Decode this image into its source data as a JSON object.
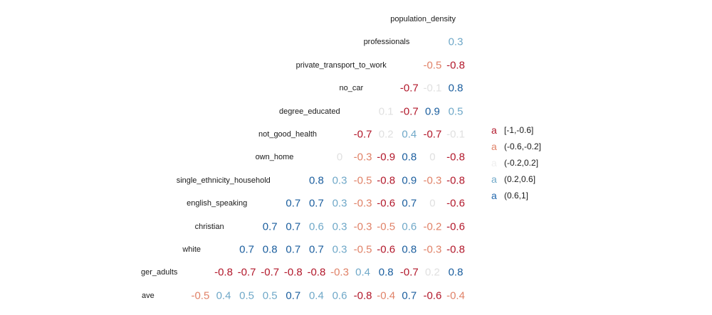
{
  "chart_data": {
    "type": "table",
    "title": "",
    "variables": [
      "population_density",
      "professionals",
      "private_transport_to_work",
      "no_car",
      "degree_educated",
      "not_good_health",
      "own_home",
      "single_ethnicity_household",
      "english_speaking",
      "christian",
      "white",
      "ger_adults",
      "ave"
    ],
    "rows": [
      {
        "label": "population_density",
        "values": []
      },
      {
        "label": "professionals",
        "values": [
          "0.3"
        ]
      },
      {
        "label": "private_transport_to_work",
        "values": [
          "-0.5",
          "-0.8"
        ]
      },
      {
        "label": "no_car",
        "values": [
          "-0.7",
          "-0.1",
          "0.8"
        ]
      },
      {
        "label": "degree_educated",
        "values": [
          "0.1",
          "-0.7",
          "0.9",
          "0.5"
        ]
      },
      {
        "label": "not_good_health",
        "values": [
          "-0.7",
          "0.2",
          "0.4",
          "-0.7",
          "-0.1"
        ]
      },
      {
        "label": "own_home",
        "values": [
          "0",
          "-0.3",
          "-0.9",
          "0.8",
          "0",
          "-0.8"
        ]
      },
      {
        "label": "single_ethnicity_household",
        "values": [
          "0.8",
          "0.3",
          "-0.5",
          "-0.8",
          "0.9",
          "-0.3",
          "-0.8"
        ]
      },
      {
        "label": "english_speaking",
        "values": [
          "0.7",
          "0.7",
          "0.3",
          "-0.3",
          "-0.6",
          "0.7",
          "0",
          "-0.6"
        ]
      },
      {
        "label": "christian",
        "values": [
          "0.7",
          "0.7",
          "0.6",
          "0.3",
          "-0.3",
          "-0.5",
          "0.6",
          "-0.2",
          "-0.6"
        ]
      },
      {
        "label": "white",
        "values": [
          "0.7",
          "0.8",
          "0.7",
          "0.7",
          "0.3",
          "-0.5",
          "-0.6",
          "0.8",
          "-0.3",
          "-0.8"
        ]
      },
      {
        "label": "ger_adults",
        "values": [
          "-0.8",
          "-0.7",
          "-0.7",
          "-0.8",
          "-0.8",
          "-0.3",
          "0.4",
          "0.8",
          "-0.7",
          "0.2",
          "0.8"
        ]
      },
      {
        "label": "ave",
        "values": [
          "-0.5",
          "0.4",
          "0.5",
          "0.5",
          "0.7",
          "0.4",
          "0.6",
          "-0.8",
          "-0.4",
          "0.7",
          "-0.6",
          "-0.4"
        ]
      }
    ],
    "legend": {
      "position": "right",
      "glyph": "a",
      "items": [
        {
          "label": "[-1,-0.6]",
          "color": "#b2182b"
        },
        {
          "label": "(-0.6,-0.2]",
          "color": "#e08268"
        },
        {
          "label": "(-0.2,0.2]",
          "color": "#efefef"
        },
        {
          "label": "(0.2,0.6]",
          "color": "#6fa8c8"
        },
        {
          "label": "(0.6,1]",
          "color": "#2166ac"
        }
      ]
    }
  },
  "colors": {
    "strong_negative": "#b2182b",
    "moderate_negative": "#e08268",
    "weak": "#e0e0e0",
    "moderate_positive": "#6fa8c8",
    "strong_positive": "#1b5e9e"
  }
}
